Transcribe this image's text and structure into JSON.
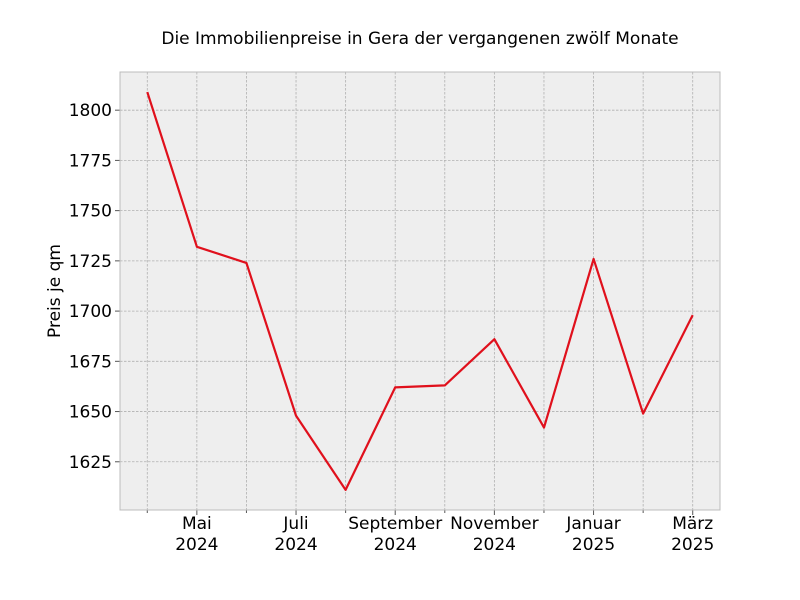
{
  "chart_data": {
    "type": "line",
    "title": "Die Immobilienpreise in Gera der vergangenen zwölf Monate",
    "xlabel": "",
    "ylabel": "Preis je qm",
    "x": [
      "2024-04",
      "2024-05",
      "2024-06",
      "2024-07",
      "2024-08",
      "2024-09",
      "2024-10",
      "2024-11",
      "2024-12",
      "2025-01",
      "2025-02",
      "2025-03"
    ],
    "series": [
      {
        "values": [
          1809,
          1732,
          1724,
          1648,
          1611,
          1662,
          1663,
          1686,
          1642,
          1726,
          1649,
          1698
        ],
        "color": "#e0101c"
      }
    ],
    "ylim": [
      1601,
      1819
    ],
    "yticks": [
      "1625",
      "1650",
      "1675",
      "1700",
      "1725",
      "1750",
      "1775",
      "1800"
    ],
    "xticks": [
      {
        "x": "2024-05",
        "month": "Mai",
        "year": "2024"
      },
      {
        "x": "2024-07",
        "month": "Juli",
        "year": "2024"
      },
      {
        "x": "2024-09",
        "month": "September",
        "year": "2024"
      },
      {
        "x": "2024-11",
        "month": "November",
        "year": "2024"
      },
      {
        "x": "2025-01",
        "month": "Januar",
        "year": "2025"
      },
      {
        "x": "2025-03",
        "month": "März",
        "year": "2025"
      }
    ],
    "minor_xticks": [
      "2024-04",
      "2024-06",
      "2024-08",
      "2024-10",
      "2024-12",
      "2025-02"
    ],
    "grid": true,
    "colors": {
      "plot_background": "#eeeeee",
      "grid": "#b0b0b0",
      "axis": "#bcbcbc",
      "line": "#e0101c"
    }
  }
}
